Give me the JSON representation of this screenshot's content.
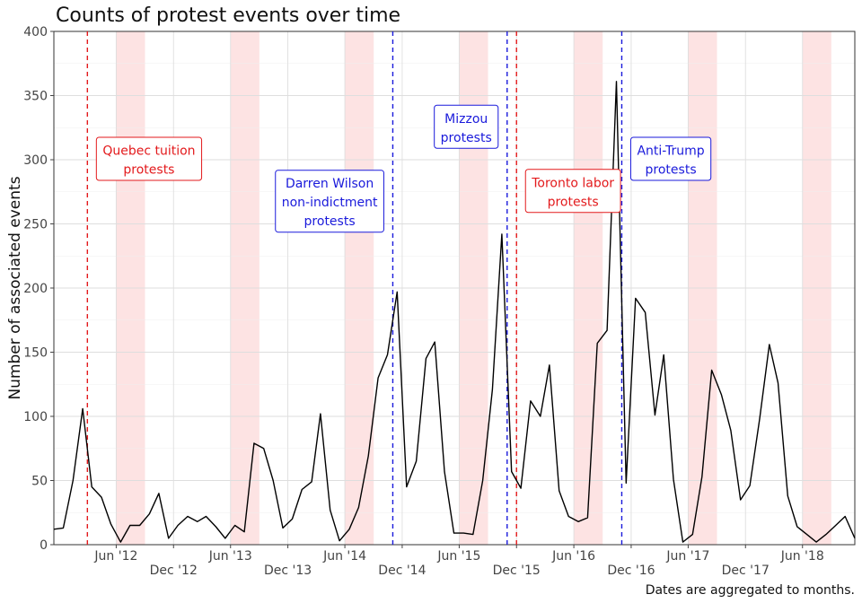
{
  "chart_data": {
    "type": "line",
    "title": "Counts of protest events over time",
    "ylabel": "Number of associated events",
    "xlabel": "",
    "caption": "Dates are aggregated to months.",
    "xlim": [
      "2011-11-15",
      "2018-11-15"
    ],
    "ylim": [
      0,
      400
    ],
    "yticks": [
      0,
      50,
      100,
      150,
      200,
      250,
      300,
      350,
      400
    ],
    "xticks": [
      {
        "date": "2012-06-01",
        "label": "Jun '12",
        "row": 1
      },
      {
        "date": "2012-12-01",
        "label": "Dec '12",
        "row": 2
      },
      {
        "date": "2013-06-01",
        "label": "Jun '13",
        "row": 1
      },
      {
        "date": "2013-12-01",
        "label": "Dec '13",
        "row": 2
      },
      {
        "date": "2014-06-01",
        "label": "Jun '14",
        "row": 1
      },
      {
        "date": "2014-12-01",
        "label": "Dec '14",
        "row": 2
      },
      {
        "date": "2015-06-01",
        "label": "Jun '15",
        "row": 1
      },
      {
        "date": "2015-12-01",
        "label": "Dec '15",
        "row": 2
      },
      {
        "date": "2016-06-01",
        "label": "Jun '16",
        "row": 1
      },
      {
        "date": "2016-12-01",
        "label": "Dec '16",
        "row": 2
      },
      {
        "date": "2017-06-01",
        "label": "Jun '17",
        "row": 1
      },
      {
        "date": "2017-12-01",
        "label": "Dec '17",
        "row": 2
      },
      {
        "date": "2018-06-01",
        "label": "Jun '18",
        "row": 1
      }
    ],
    "grid": true,
    "shaded_periods": [
      {
        "start": "2012-06-01",
        "end": "2012-09-01"
      },
      {
        "start": "2013-06-01",
        "end": "2013-09-01"
      },
      {
        "start": "2014-06-01",
        "end": "2014-09-01"
      },
      {
        "start": "2015-06-01",
        "end": "2015-09-01"
      },
      {
        "start": "2016-06-01",
        "end": "2016-09-01"
      },
      {
        "start": "2017-06-01",
        "end": "2017-09-01"
      },
      {
        "start": "2018-06-01",
        "end": "2018-09-01"
      }
    ],
    "events": [
      {
        "date": "2012-03-01",
        "color": "#e31a1c",
        "label_lines": [
          "Quebec tuition",
          "protests"
        ],
        "label_y": 300
      },
      {
        "date": "2014-11-01",
        "color": "#1a1adb",
        "label_lines": [
          "Darren Wilson",
          "non-indictment",
          "protests"
        ],
        "label_y": 267
      },
      {
        "date": "2015-11-01",
        "color": "#1a1adb",
        "label_lines": [
          "Mizzou",
          "protests"
        ],
        "label_y": 325
      },
      {
        "date": "2015-12-01",
        "color": "#e31a1c",
        "label_lines": [
          "Toronto labor",
          "protests"
        ],
        "label_y": 275
      },
      {
        "date": "2016-11-01",
        "color": "#1a1adb",
        "label_lines": [
          "Anti-Trump",
          "protests"
        ],
        "label_y": 300
      }
    ],
    "series": [
      {
        "x": [
          "2011-11-15",
          "2011-12-15",
          "2012-01-15",
          "2012-02-15",
          "2012-03-15",
          "2012-04-15",
          "2012-05-15",
          "2012-06-15",
          "2012-07-15",
          "2012-08-15",
          "2012-09-15",
          "2012-10-15",
          "2012-11-15",
          "2012-12-15",
          "2013-01-15",
          "2013-02-15",
          "2013-03-15",
          "2013-04-15",
          "2013-05-15",
          "2013-06-15",
          "2013-07-15",
          "2013-08-15",
          "2013-09-15",
          "2013-10-15",
          "2013-11-15",
          "2013-12-15",
          "2014-01-15",
          "2014-02-15",
          "2014-03-15",
          "2014-04-15",
          "2014-05-15",
          "2014-06-15",
          "2014-07-15",
          "2014-08-15",
          "2014-09-15",
          "2014-10-15",
          "2014-11-15",
          "2014-12-15",
          "2015-01-15",
          "2015-02-15",
          "2015-03-15",
          "2015-04-15",
          "2015-05-15",
          "2015-06-15",
          "2015-07-15",
          "2015-08-15",
          "2015-09-15",
          "2015-10-15",
          "2015-11-15",
          "2015-12-15",
          "2016-01-15",
          "2016-02-15",
          "2016-03-15",
          "2016-04-15",
          "2016-05-15",
          "2016-06-15",
          "2016-07-15",
          "2016-08-15",
          "2016-09-15",
          "2016-10-15",
          "2016-11-15",
          "2016-12-15",
          "2017-01-15",
          "2017-02-15",
          "2017-03-15",
          "2017-04-15",
          "2017-05-15",
          "2017-06-15",
          "2017-07-15",
          "2017-08-15",
          "2017-09-15",
          "2017-10-15",
          "2017-11-15",
          "2017-12-15",
          "2018-01-15",
          "2018-02-15",
          "2018-03-15",
          "2018-04-15",
          "2018-05-15",
          "2018-06-15",
          "2018-07-15",
          "2018-08-15",
          "2018-09-15",
          "2018-10-15",
          "2018-11-15"
        ],
        "values": [
          12,
          13,
          50,
          106,
          45,
          37,
          16,
          2,
          15,
          15,
          24,
          40,
          5,
          15,
          22,
          18,
          22,
          14,
          5,
          15,
          10,
          79,
          75,
          50,
          13,
          20,
          43,
          49,
          102,
          27,
          3,
          12,
          29,
          69,
          130,
          148,
          197,
          45,
          65,
          145,
          158,
          57,
          9,
          9,
          8,
          50,
          121,
          242,
          57,
          44,
          112,
          100,
          140,
          42,
          22,
          18,
          21,
          157,
          167,
          361,
          48,
          192,
          181,
          101,
          148,
          51,
          2,
          8,
          53,
          136,
          117,
          89,
          35,
          46,
          98,
          156,
          126,
          38,
          14,
          8,
          2,
          8,
          15,
          22,
          5
        ]
      }
    ]
  }
}
